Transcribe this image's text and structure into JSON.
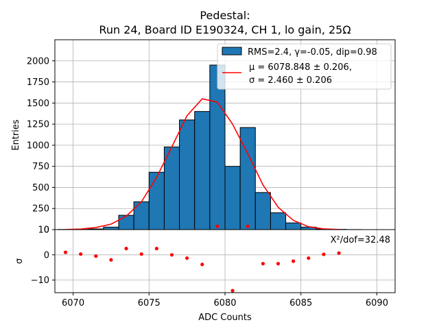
{
  "chart_data": {
    "type": "bar",
    "title_line1": "Pedestal:",
    "title_line2": "Run 24, Board ID E190324, CH 1, lo gain, 25Ω",
    "xlabel": "ADC Counts",
    "ylabel": "Entries",
    "residual_ylabel": "σ",
    "xlim": [
      6068.8,
      6091.2
    ],
    "ylim": [
      0,
      2250
    ],
    "residual_ylim": [
      -15,
      10
    ],
    "grid": true,
    "legend_position": "top-right",
    "x_ticks": [
      "6070",
      "6075",
      "6080",
      "6085",
      "6090"
    ],
    "x_tick_values": [
      6070,
      6075,
      6080,
      6085,
      6090
    ],
    "y_ticks": [
      "0",
      "250",
      "500",
      "750",
      "1000",
      "1250",
      "1500",
      "1750",
      "2000"
    ],
    "y_tick_values": [
      0,
      250,
      500,
      750,
      1000,
      1250,
      1500,
      1750,
      2000
    ],
    "residual_ticks": [
      "10",
      "0",
      "−10"
    ],
    "residual_tick_values": [
      10,
      0,
      -10
    ],
    "hist_bin_edges": [
      6069,
      6070,
      6071,
      6072,
      6073,
      6074,
      6075,
      6076,
      6077,
      6078,
      6079,
      6080,
      6081,
      6082,
      6083,
      6084,
      6085,
      6086,
      6087,
      6088,
      6089,
      6090
    ],
    "hist_counts": [
      2,
      3,
      8,
      30,
      170,
      330,
      680,
      980,
      1300,
      1400,
      1950,
      750,
      1210,
      440,
      200,
      80,
      30,
      8,
      3,
      1,
      0
    ],
    "hist_color": "#1f77b4",
    "fit_x": [
      6069.5,
      6070.5,
      6071.5,
      6072.5,
      6073.5,
      6074.5,
      6075.5,
      6076.5,
      6077.5,
      6078.5,
      6079.5,
      6080.5,
      6081.5,
      6082.5,
      6083.5,
      6084.5,
      6085.5,
      6086.5,
      6087.5
    ],
    "fit_y": [
      2,
      7,
      25,
      65,
      160,
      330,
      620,
      980,
      1350,
      1550,
      1510,
      1250,
      900,
      530,
      265,
      110,
      35,
      9,
      2
    ],
    "fit_color": "#ff0000",
    "legend_hist_label": "RMS=2.4, γ=-0.05, dip=0.98",
    "legend_fit_line1": "μ = 6078.848 ± 0.206,",
    "legend_fit_line2": "σ = 2.460 ± 0.206",
    "residual_x": [
      6069.5,
      6070.5,
      6071.5,
      6072.5,
      6073.5,
      6074.5,
      6075.5,
      6076.5,
      6077.5,
      6078.5,
      6079.5,
      6080.5,
      6081.5,
      6082.5,
      6083.5,
      6084.5,
      6085.5,
      6086.5,
      6087.5
    ],
    "residual_y": [
      1,
      0.3,
      -0.5,
      -2,
      2.5,
      0.3,
      2.5,
      0,
      -1.3,
      -3.8,
      11.3,
      -14.2,
      11.3,
      -3.5,
      -3.5,
      -2.5,
      -1.3,
      0.2,
      0.7
    ],
    "residual_annotation": "X²/dof=32.48"
  }
}
